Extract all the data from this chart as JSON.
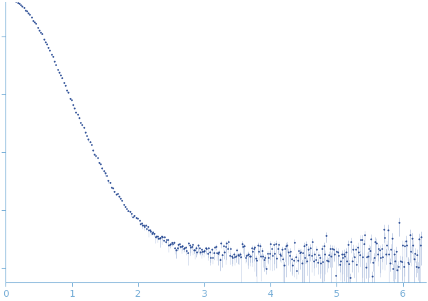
{
  "x_min": 0.0,
  "x_max": 6.35,
  "y_min": -0.05,
  "y_max": 0.92,
  "y_log": false,
  "dot_color": "#2e4f96",
  "error_color": "#b0c0de",
  "dot_size": 3.5,
  "axis_color": "#7ab0d8",
  "tick_color": "#7ab0d8",
  "background_color": "#ffffff",
  "xlabel": "",
  "ylabel": "",
  "xticks": [
    0,
    1,
    2,
    3,
    4,
    5,
    6
  ],
  "seed": 12345,
  "n_low": 85,
  "n_high": 270,
  "I0": 0.88,
  "plateau": 0.055,
  "Rg": 0.72,
  "background_level": 0.052
}
